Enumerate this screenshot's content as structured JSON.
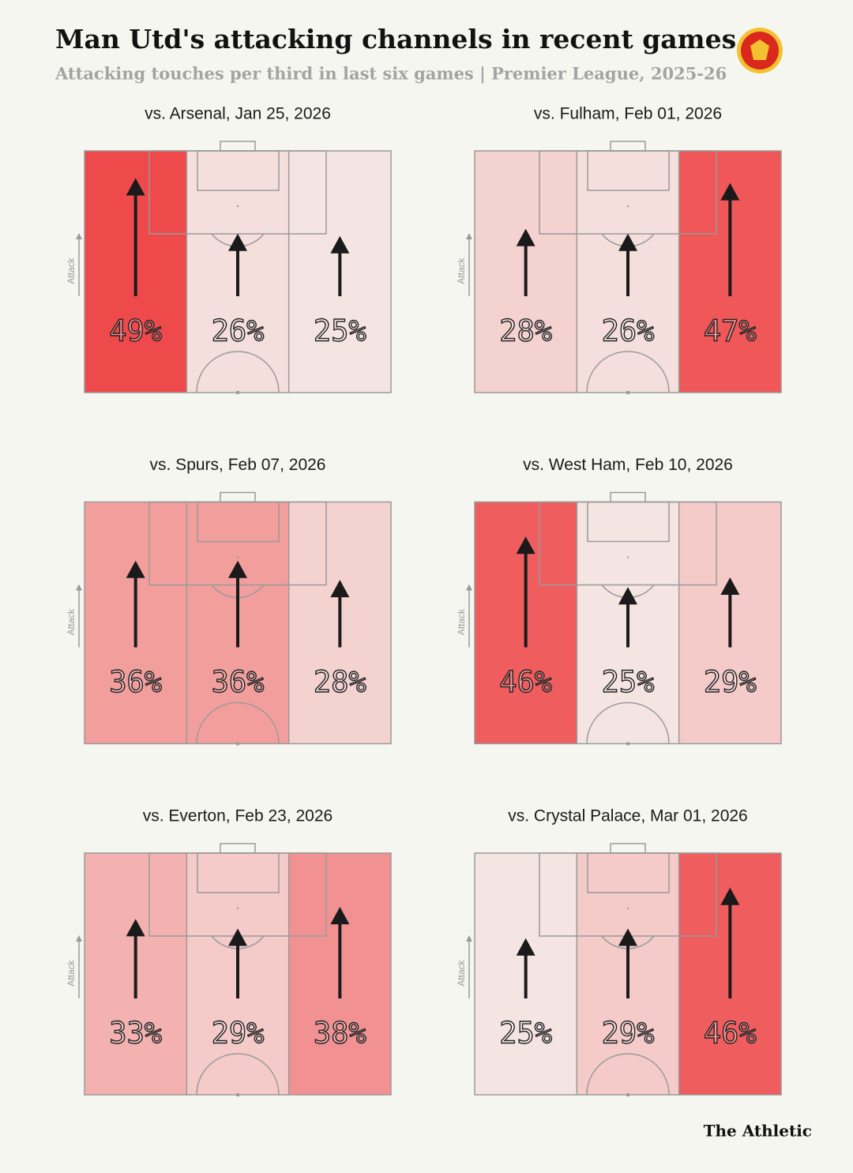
{
  "title": "Man Utd's attacking channels in recent games",
  "subtitle": "Attacking touches per third in last six games | Premier League, 2025-26",
  "brand": "The Athletic",
  "chart_data": [
    {
      "type": "pitch-channels",
      "title": "vs. Arsenal, Jan 25, 2026",
      "axis_label": "Attack",
      "values": [
        49,
        26,
        25
      ],
      "value_labels": [
        "49%",
        "26%",
        "25%"
      ]
    },
    {
      "type": "pitch-channels",
      "title": "vs. Fulham, Feb 01, 2026",
      "axis_label": "Attack",
      "values": [
        28,
        26,
        47
      ],
      "value_labels": [
        "28%",
        "26%",
        "47%"
      ]
    },
    {
      "type": "pitch-channels",
      "title": "vs. Spurs, Feb 07, 2026",
      "axis_label": "Attack",
      "values": [
        36,
        36,
        28
      ],
      "value_labels": [
        "36%",
        "36%",
        "28%"
      ]
    },
    {
      "type": "pitch-channels",
      "title": "vs. West Ham, Feb 10, 2026",
      "axis_label": "Attack",
      "values": [
        46,
        25,
        29
      ],
      "value_labels": [
        "46%",
        "25%",
        "29%"
      ]
    },
    {
      "type": "pitch-channels",
      "title": "vs. Everton, Feb 23, 2026",
      "axis_label": "Attack",
      "values": [
        33,
        29,
        38
      ],
      "value_labels": [
        "33%",
        "29%",
        "38%"
      ]
    },
    {
      "type": "pitch-channels",
      "title": "vs. Crystal Palace, Mar 01, 2026",
      "axis_label": "Attack",
      "values": [
        25,
        29,
        46
      ],
      "value_labels": [
        "25%",
        "29%",
        "46%"
      ]
    }
  ]
}
